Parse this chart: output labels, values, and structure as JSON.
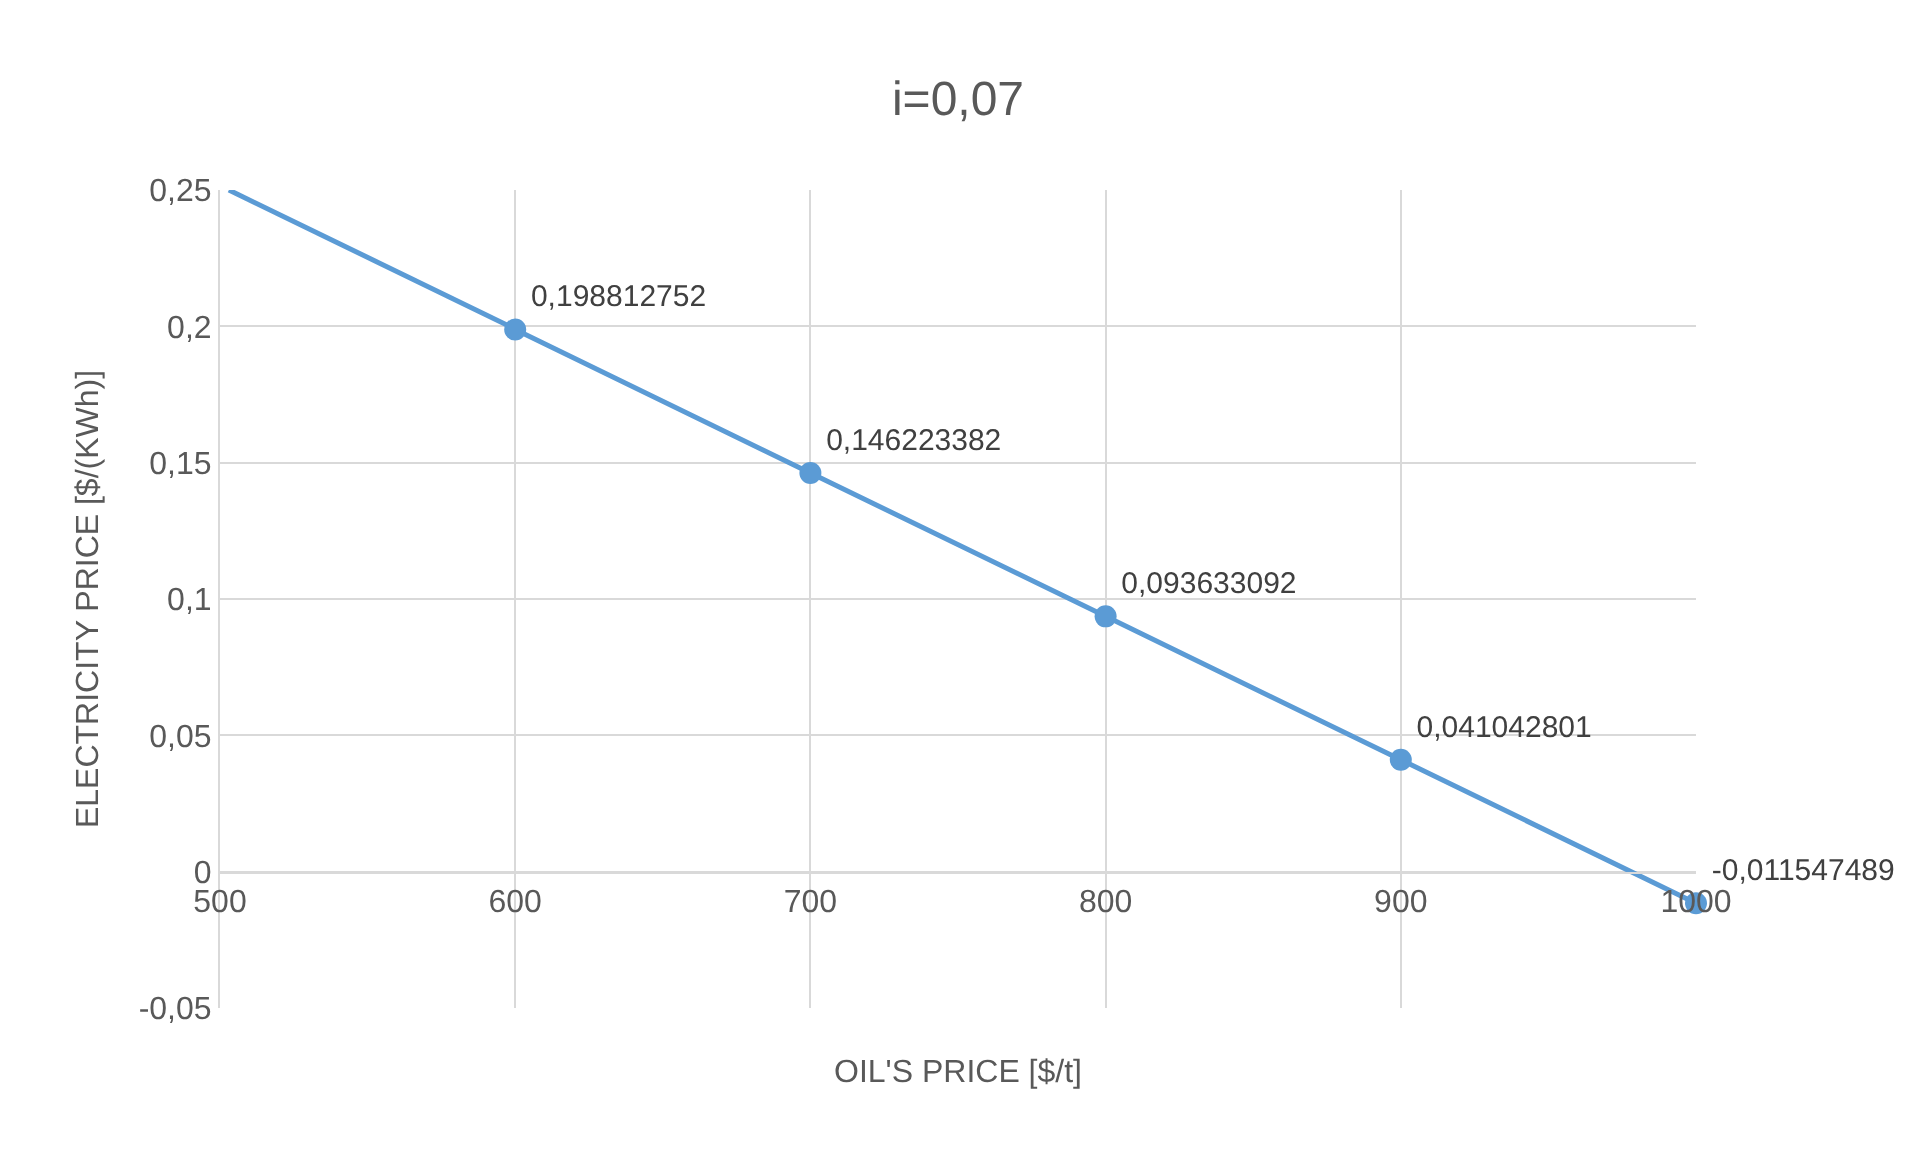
{
  "chart_data": {
    "type": "line",
    "title": "i=0,07",
    "xlabel": "OIL'S PRICE [$/t]",
    "ylabel": "ELECTRICITY PRICE [$/(KWh)]",
    "series": [
      {
        "color": "#5b9bd5",
        "x": [
          503,
          600
        ],
        "values": [
          0.25,
          0.199
        ]
      },
      {
        "color": "#5b9bd5",
        "x": [
          600,
          700,
          800,
          900,
          1000
        ],
        "values": [
          0.198812752,
          0.146223382,
          0.093633092,
          0.041042801,
          -0.011547489
        ],
        "marker": "circle",
        "value_labels": [
          "0,198812752",
          "0,146223382",
          "0,093633092",
          "0,041042801",
          "-0,011547489"
        ]
      }
    ],
    "xlim": [
      500,
      1000
    ],
    "xticks": [
      500,
      600,
      700,
      800,
      900,
      1000
    ],
    "ylim": [
      -0.05,
      0.25
    ],
    "yticks": [
      {
        "value": -0.05,
        "label": "-0,05"
      },
      {
        "value": 0,
        "label": "0"
      },
      {
        "value": 0.05,
        "label": "0,05"
      },
      {
        "value": 0.1,
        "label": "0,1"
      },
      {
        "value": 0.15,
        "label": "0,15"
      },
      {
        "value": 0.2,
        "label": "0,2"
      },
      {
        "value": 0.25,
        "label": "0,25"
      }
    ],
    "grid": true,
    "legend": false,
    "line_style": "solid"
  }
}
